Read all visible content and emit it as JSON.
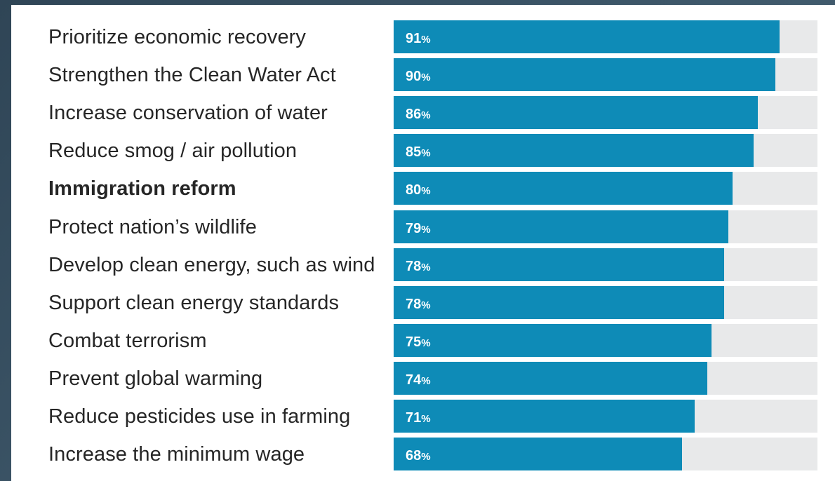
{
  "chart_data": {
    "type": "bar",
    "orientation": "horizontal",
    "categories": [
      "Prioritize economic recovery",
      "Strengthen the Clean Water Act",
      "Increase conservation of water",
      "Reduce smog / air pollution",
      "Immigration reform",
      "Protect nation’s wildlife",
      "Develop clean energy, such as wind",
      "Support clean energy standards",
      "Combat terrorism",
      "Prevent global warming",
      "Reduce pesticides use in farming",
      "Increase the minimum wage"
    ],
    "values": [
      91,
      90,
      86,
      85,
      80,
      79,
      78,
      78,
      75,
      74,
      71,
      68
    ],
    "value_labels": [
      "91",
      "90",
      "86",
      "85",
      "80",
      "79",
      "78",
      "78",
      "75",
      "74",
      "71",
      "68"
    ],
    "value_suffix": "%",
    "highlighted_category": "Immigration reform",
    "xlim": [
      0,
      100
    ],
    "title": "",
    "xlabel": "",
    "ylabel": "",
    "grid": false,
    "colors": {
      "bar": "#0e8bb7",
      "track": "#e8e9ea",
      "label_text": "#262626",
      "value_text": "#ffffff"
    }
  }
}
